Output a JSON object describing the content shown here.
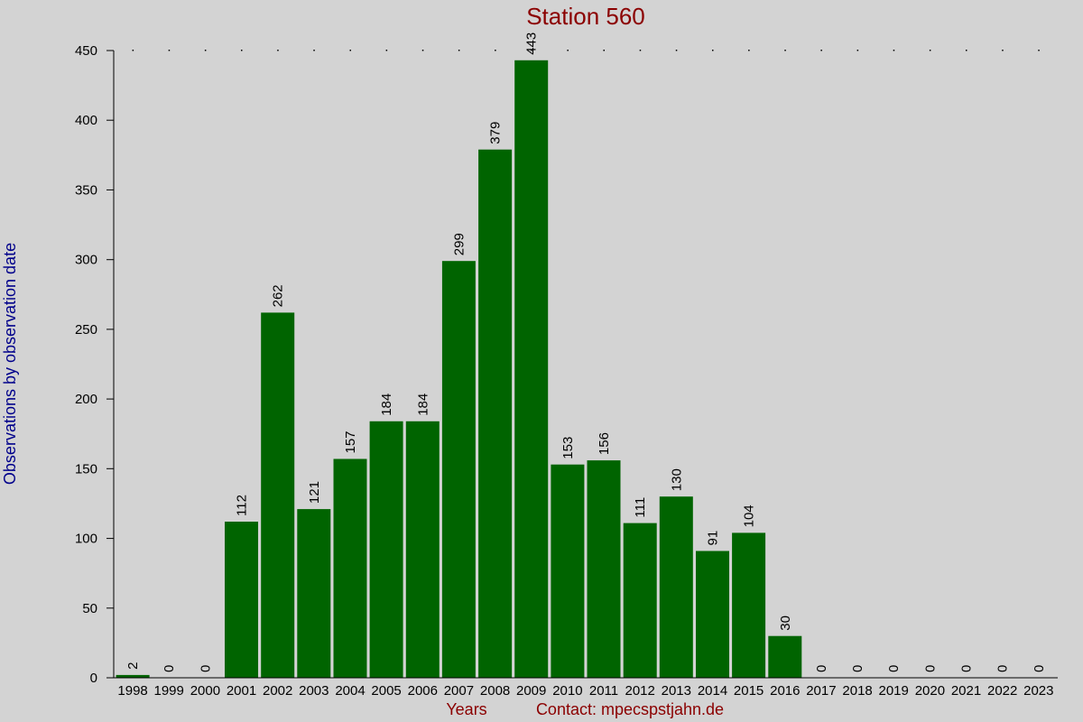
{
  "chart_data": {
    "type": "bar",
    "title": "Station 560",
    "xlabel": "Years",
    "ylabel": "Observations by observation date",
    "footer": "Contact: mpecspstjahn.de",
    "categories": [
      "1998",
      "1999",
      "2000",
      "2001",
      "2002",
      "2003",
      "2004",
      "2005",
      "2006",
      "2007",
      "2008",
      "2009",
      "2010",
      "2011",
      "2012",
      "2013",
      "2014",
      "2015",
      "2016",
      "2017",
      "2018",
      "2019",
      "2020",
      "2021",
      "2022",
      "2023"
    ],
    "values": [
      2,
      0,
      0,
      112,
      262,
      121,
      157,
      184,
      184,
      299,
      379,
      443,
      153,
      156,
      111,
      130,
      91,
      104,
      30,
      0,
      0,
      0,
      0,
      0,
      0,
      0
    ],
    "ylim": [
      0,
      450
    ],
    "yticks": [
      0,
      50,
      100,
      150,
      200,
      250,
      300,
      350,
      400,
      450
    ],
    "grid": false,
    "legend": "none",
    "colors": {
      "bar": "#006400",
      "title": "#8b0000",
      "xlabel": "#8b0000",
      "ylabel": "#00008b",
      "background": "#d3d3d3"
    }
  }
}
